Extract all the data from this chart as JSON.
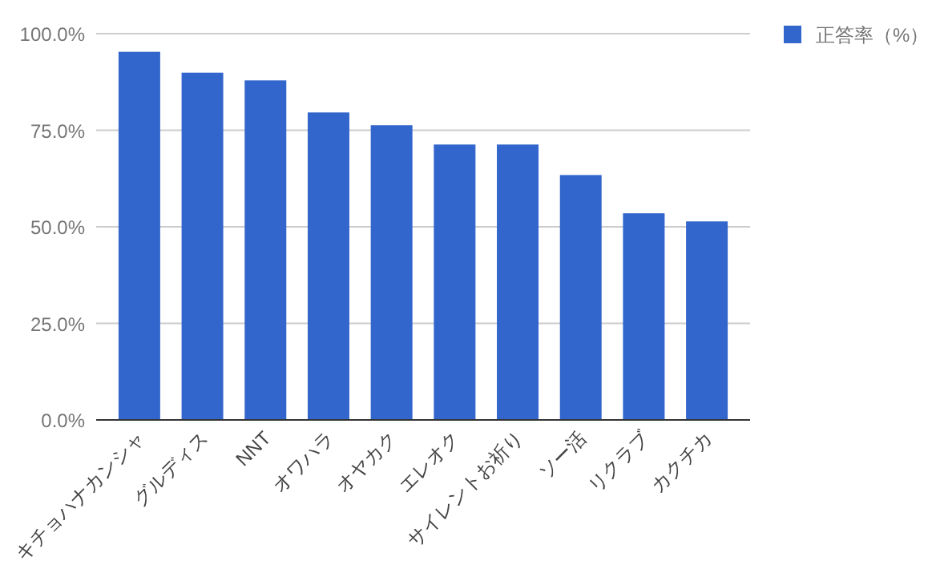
{
  "chart_data": {
    "type": "bar",
    "categories": [
      "キチョハナカンシャ",
      "グルディス",
      "NNT",
      "オワハラ",
      "オヤカク",
      "エレオク",
      "サイレントお祈り",
      "ソー活",
      "リクラブ",
      "カクチカ"
    ],
    "series": [
      {
        "name": "正答率（%）",
        "color": "#3366cc",
        "values": [
          95.3,
          89.9,
          87.9,
          79.6,
          76.3,
          71.3,
          71.3,
          63.4,
          53.5,
          51.4
        ]
      }
    ],
    "ylim": [
      0,
      100
    ],
    "yticks": [
      {
        "value": 0,
        "label": "0.0%"
      },
      {
        "value": 25,
        "label": "25.0%"
      },
      {
        "value": 50,
        "label": "50.0%"
      },
      {
        "value": 75,
        "label": "75.0%"
      },
      {
        "value": 100,
        "label": "100.0%"
      }
    ],
    "grid": "y",
    "legend": "top right"
  }
}
